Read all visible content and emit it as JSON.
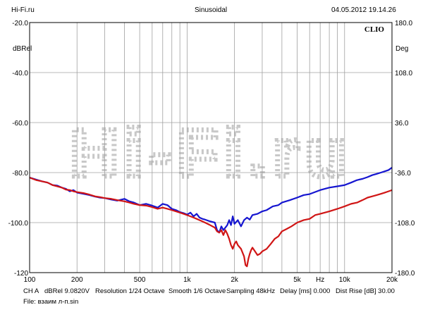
{
  "header": {
    "site": "Hi-Fi.ru",
    "mode": "Sinusoidal",
    "datetime": "04.05.2012 19.14.26"
  },
  "footer": {
    "line1_parts": [
      "CH A",
      "dBRel 9.0820V",
      "Resolution 1/24 Octave",
      "Smooth 1/6 Octave",
      "Sampling 48kHz",
      "Delay [ms] 0.000",
      "Dist Rise [dB] 30.00"
    ],
    "line2": "File: взаим л-п.sin"
  },
  "chart_data": {
    "type": "line",
    "brand_label": "CLIO",
    "watermark": "Hi-Fi.ru",
    "x_axis": {
      "scale": "log",
      "range": [
        100,
        20000
      ],
      "tick_labels": [
        {
          "value": 100,
          "label": "100"
        },
        {
          "value": 200,
          "label": "200"
        },
        {
          "value": 500,
          "label": "500"
        },
        {
          "value": 1000,
          "label": "1k"
        },
        {
          "value": 2000,
          "label": "2k"
        },
        {
          "value": 5000,
          "label": "5k"
        },
        {
          "value": 7000,
          "label": "Hz"
        },
        {
          "value": 10000,
          "label": "10k"
        },
        {
          "value": 20000,
          "label": "20k"
        }
      ]
    },
    "y_left": {
      "label": "dBRel",
      "range": [
        -120,
        -20
      ],
      "ticks": [
        {
          "value": -20,
          "label": "-20.0"
        },
        {
          "value": -40,
          "label": "-40.0"
        },
        {
          "value": -60,
          "label": "-60.0"
        },
        {
          "value": -80,
          "label": "-80.0"
        },
        {
          "value": -100,
          "label": "-100.0"
        },
        {
          "value": -120,
          "label": "-120"
        }
      ]
    },
    "y_right": {
      "label": "Deg",
      "range": [
        -180,
        180
      ],
      "ticks": [
        {
          "value": 180,
          "label": "180.0"
        },
        {
          "value": 108,
          "label": "108.0"
        },
        {
          "value": 36,
          "label": "36.0"
        },
        {
          "value": -36,
          "label": "-36.0"
        },
        {
          "value": -108,
          "label": "-108.0"
        },
        {
          "value": -180,
          "label": "-180.0"
        }
      ]
    },
    "grid": true,
    "series": [
      {
        "color": "#1515d0",
        "points": [
          [
            100,
            -82.0
          ],
          [
            110,
            -82.8
          ],
          [
            120,
            -83.5
          ],
          [
            130,
            -84.0
          ],
          [
            140,
            -85.0
          ],
          [
            150,
            -85.2
          ],
          [
            160,
            -86.0
          ],
          [
            170,
            -86.5
          ],
          [
            180,
            -87.5
          ],
          [
            190,
            -87.0
          ],
          [
            200,
            -88.0
          ],
          [
            220,
            -88.5
          ],
          [
            240,
            -89.0
          ],
          [
            260,
            -89.6
          ],
          [
            280,
            -90.0
          ],
          [
            300,
            -90.2
          ],
          [
            330,
            -90.8
          ],
          [
            360,
            -91.2
          ],
          [
            400,
            -90.5
          ],
          [
            430,
            -91.5
          ],
          [
            460,
            -92.0
          ],
          [
            500,
            -93.0
          ],
          [
            550,
            -92.5
          ],
          [
            600,
            -93.2
          ],
          [
            650,
            -94.0
          ],
          [
            700,
            -92.5
          ],
          [
            750,
            -93.0
          ],
          [
            800,
            -94.5
          ],
          [
            850,
            -95.0
          ],
          [
            900,
            -95.8
          ],
          [
            950,
            -96.2
          ],
          [
            1000,
            -96.8
          ],
          [
            1050,
            -96.0
          ],
          [
            1100,
            -97.5
          ],
          [
            1150,
            -96.5
          ],
          [
            1200,
            -98.0
          ],
          [
            1250,
            -98.5
          ],
          [
            1300,
            -98.8
          ],
          [
            1400,
            -99.5
          ],
          [
            1500,
            -100.0
          ],
          [
            1550,
            -103.0
          ],
          [
            1600,
            -104.0
          ],
          [
            1650,
            -101.5
          ],
          [
            1700,
            -103.0
          ],
          [
            1750,
            -102.0
          ],
          [
            1800,
            -101.0
          ],
          [
            1850,
            -99.0
          ],
          [
            1900,
            -101.0
          ],
          [
            1950,
            -97.5
          ],
          [
            2000,
            -100.5
          ],
          [
            2100,
            -99.0
          ],
          [
            2200,
            -101.5
          ],
          [
            2300,
            -99.0
          ],
          [
            2400,
            -98.0
          ],
          [
            2500,
            -98.8
          ],
          [
            2600,
            -97.0
          ],
          [
            2800,
            -96.5
          ],
          [
            3000,
            -95.5
          ],
          [
            3200,
            -95.0
          ],
          [
            3500,
            -93.5
          ],
          [
            3800,
            -93.0
          ],
          [
            4000,
            -92.0
          ],
          [
            4500,
            -91.0
          ],
          [
            5000,
            -90.0
          ],
          [
            5500,
            -89.0
          ],
          [
            6000,
            -88.6
          ],
          [
            7000,
            -87.0
          ],
          [
            8000,
            -86.0
          ],
          [
            9000,
            -85.5
          ],
          [
            10000,
            -85.0
          ],
          [
            11000,
            -84.0
          ],
          [
            12000,
            -83.0
          ],
          [
            13000,
            -82.5
          ],
          [
            14000,
            -81.8
          ],
          [
            15000,
            -81.0
          ],
          [
            16000,
            -80.5
          ],
          [
            17000,
            -80.0
          ],
          [
            18000,
            -79.5
          ],
          [
            19000,
            -79.0
          ],
          [
            20000,
            -78.0
          ]
        ]
      },
      {
        "color": "#d01515",
        "points": [
          [
            100,
            -82.0
          ],
          [
            110,
            -83.0
          ],
          [
            120,
            -83.5
          ],
          [
            130,
            -84.0
          ],
          [
            140,
            -85.0
          ],
          [
            150,
            -85.5
          ],
          [
            160,
            -86.0
          ],
          [
            170,
            -86.8
          ],
          [
            180,
            -87.0
          ],
          [
            190,
            -87.5
          ],
          [
            200,
            -87.8
          ],
          [
            220,
            -88.2
          ],
          [
            240,
            -88.8
          ],
          [
            260,
            -89.5
          ],
          [
            280,
            -89.8
          ],
          [
            300,
            -90.2
          ],
          [
            330,
            -90.5
          ],
          [
            360,
            -91.0
          ],
          [
            400,
            -91.5
          ],
          [
            430,
            -92.0
          ],
          [
            460,
            -92.5
          ],
          [
            500,
            -93.0
          ],
          [
            550,
            -93.2
          ],
          [
            600,
            -93.8
          ],
          [
            650,
            -94.5
          ],
          [
            700,
            -94.0
          ],
          [
            750,
            -94.5
          ],
          [
            800,
            -95.0
          ],
          [
            850,
            -95.5
          ],
          [
            900,
            -96.0
          ],
          [
            950,
            -96.5
          ],
          [
            1000,
            -97.0
          ],
          [
            1050,
            -97.5
          ],
          [
            1100,
            -98.0
          ],
          [
            1150,
            -98.5
          ],
          [
            1200,
            -99.0
          ],
          [
            1250,
            -99.5
          ],
          [
            1300,
            -100.0
          ],
          [
            1400,
            -101.0
          ],
          [
            1500,
            -102.0
          ],
          [
            1550,
            -103.5
          ],
          [
            1600,
            -104.0
          ],
          [
            1650,
            -103.0
          ],
          [
            1700,
            -105.0
          ],
          [
            1750,
            -103.0
          ],
          [
            1800,
            -104.5
          ],
          [
            1850,
            -106.5
          ],
          [
            1900,
            -109.0
          ],
          [
            1950,
            -110.5
          ],
          [
            2000,
            -108.5
          ],
          [
            2050,
            -107.5
          ],
          [
            2100,
            -109.0
          ],
          [
            2200,
            -110.5
          ],
          [
            2300,
            -113.5
          ],
          [
            2350,
            -117.0
          ],
          [
            2400,
            -117.5
          ],
          [
            2450,
            -114.5
          ],
          [
            2500,
            -112.5
          ],
          [
            2550,
            -111.0
          ],
          [
            2600,
            -110.0
          ],
          [
            2700,
            -111.5
          ],
          [
            2800,
            -113.0
          ],
          [
            2900,
            -112.5
          ],
          [
            3000,
            -111.5
          ],
          [
            3200,
            -110.5
          ],
          [
            3400,
            -108.5
          ],
          [
            3600,
            -106.5
          ],
          [
            3800,
            -105.5
          ],
          [
            4000,
            -103.5
          ],
          [
            4300,
            -102.5
          ],
          [
            4600,
            -101.5
          ],
          [
            5000,
            -100.0
          ],
          [
            5500,
            -99.0
          ],
          [
            6000,
            -98.5
          ],
          [
            6500,
            -97.0
          ],
          [
            7000,
            -96.5
          ],
          [
            8000,
            -95.5
          ],
          [
            9000,
            -94.5
          ],
          [
            10000,
            -93.5
          ],
          [
            11000,
            -92.5
          ],
          [
            12000,
            -92.0
          ],
          [
            13000,
            -91.0
          ],
          [
            14000,
            -90.0
          ],
          [
            15000,
            -89.5
          ],
          [
            16000,
            -89.0
          ],
          [
            17000,
            -88.5
          ],
          [
            18000,
            -88.0
          ],
          [
            19000,
            -87.5
          ],
          [
            20000,
            -87.0
          ]
        ]
      }
    ]
  }
}
